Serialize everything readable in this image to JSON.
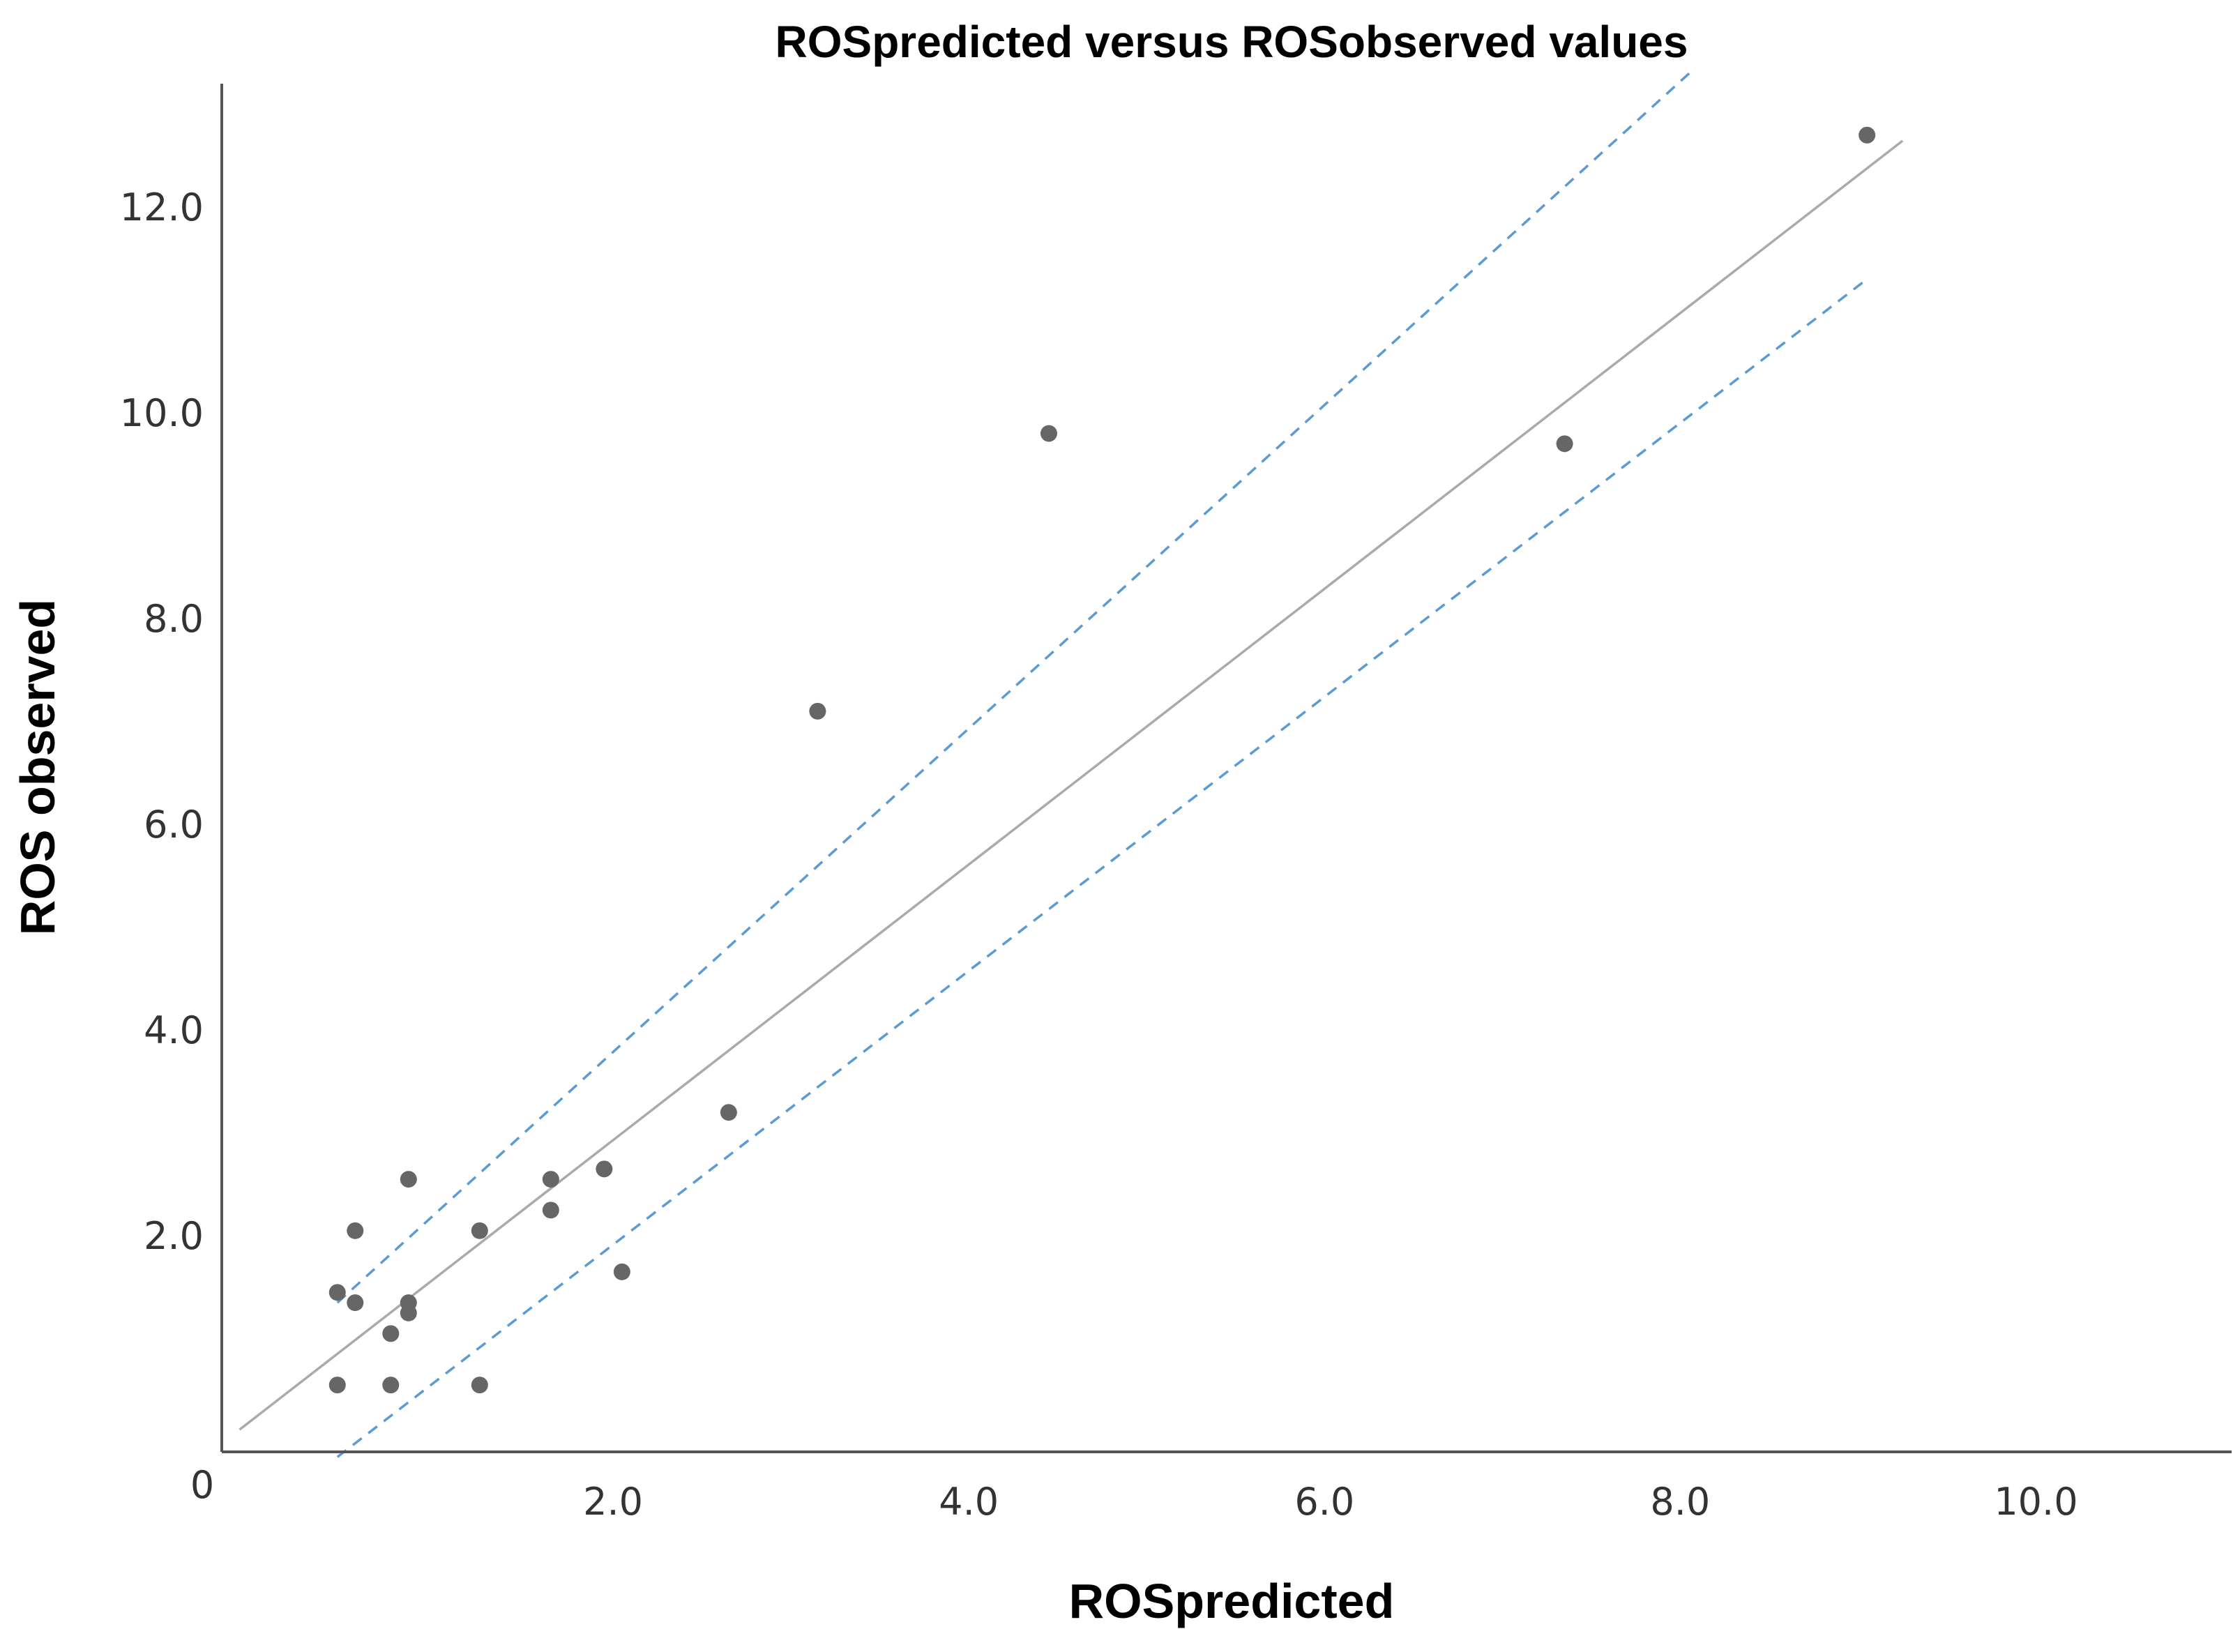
{
  "chart_data": {
    "type": "scatter",
    "title": "ROSpredicted versus ROSobserved values",
    "xlabel": "ROSpredicted",
    "ylabel": "ROS observed",
    "xlim": [
      -0.2,
      11.1
    ],
    "ylim": [
      -0.1,
      13.2
    ],
    "x_ticks": [
      {
        "value": 2.0,
        "label": "2.0"
      },
      {
        "value": 4.0,
        "label": "4.0"
      },
      {
        "value": 6.0,
        "label": "6.0"
      },
      {
        "value": 8.0,
        "label": "8.0"
      },
      {
        "value": 10.0,
        "label": "10.0"
      }
    ],
    "y_ticks": [
      {
        "value": 2.0,
        "label": "2.0"
      },
      {
        "value": 4.0,
        "label": "4.0"
      },
      {
        "value": 6.0,
        "label": "6.0"
      },
      {
        "value": 8.0,
        "label": "8.0"
      },
      {
        "value": 10.0,
        "label": "10.0"
      },
      {
        "value": 12.0,
        "label": "12.0"
      }
    ],
    "origin_label": "0",
    "series": [
      {
        "points": [
          {
            "x": 0.45,
            "y": 0.55
          },
          {
            "x": 0.45,
            "y": 1.45
          },
          {
            "x": 0.55,
            "y": 1.35
          },
          {
            "x": 0.55,
            "y": 2.05
          },
          {
            "x": 0.75,
            "y": 0.55
          },
          {
            "x": 0.75,
            "y": 1.05
          },
          {
            "x": 0.85,
            "y": 1.25
          },
          {
            "x": 0.85,
            "y": 1.35
          },
          {
            "x": 0.85,
            "y": 2.55
          },
          {
            "x": 1.25,
            "y": 0.55
          },
          {
            "x": 1.25,
            "y": 2.05
          },
          {
            "x": 1.65,
            "y": 2.25
          },
          {
            "x": 1.65,
            "y": 2.55
          },
          {
            "x": 1.95,
            "y": 2.65
          },
          {
            "x": 2.05,
            "y": 1.65
          },
          {
            "x": 2.65,
            "y": 3.2
          },
          {
            "x": 3.15,
            "y": 7.1
          },
          {
            "x": 4.45,
            "y": 9.8
          },
          {
            "x": 7.35,
            "y": 9.7
          },
          {
            "x": 9.05,
            "y": 12.7
          }
        ]
      }
    ],
    "fit_line": {
      "slope": 1.34,
      "intercept": 0.25,
      "x_range": [
        -0.1,
        9.25
      ]
    },
    "confidence_bands": {
      "upper": {
        "x_range": [
          0.45,
          8.05
        ],
        "y_range": [
          1.35,
          13.3
        ]
      },
      "lower": {
        "x_range": [
          0.45,
          9.05
        ],
        "y_range": [
          -0.15,
          11.3
        ]
      }
    },
    "grid": false,
    "colors": {
      "points": "#666666",
      "fit_line": "#aaaaaa",
      "confidence_bands": "#5b9bd5",
      "axes": "#555555"
    }
  }
}
